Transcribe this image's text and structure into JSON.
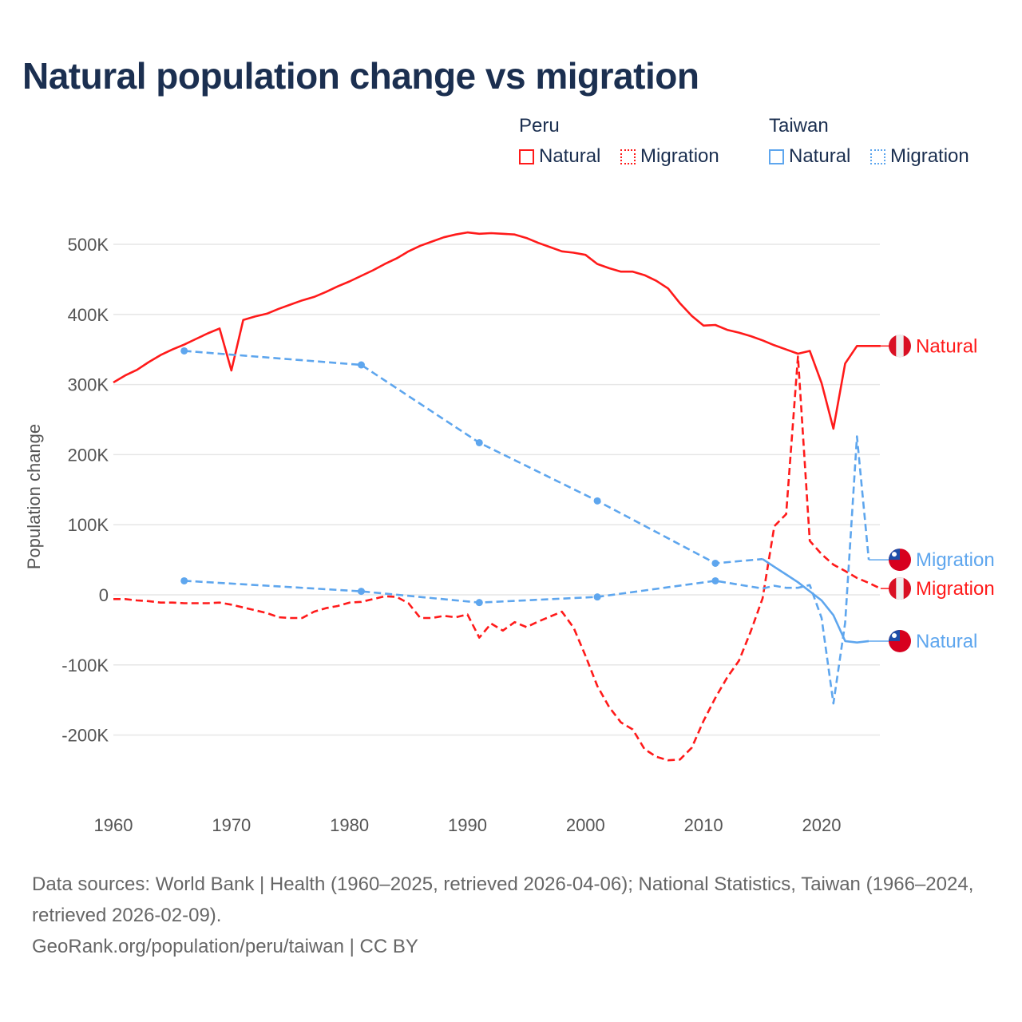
{
  "title": "Natural population change vs migration",
  "legend": {
    "groups": [
      {
        "name": "Peru",
        "items": [
          {
            "label": "Natural",
            "style": "solid",
            "color": "#ff1a1a"
          },
          {
            "label": "Migration",
            "style": "dotted",
            "color": "#ff1a1a"
          }
        ]
      },
      {
        "name": "Taiwan",
        "items": [
          {
            "label": "Natural",
            "style": "solid",
            "color": "#5ea6ee"
          },
          {
            "label": "Migration",
            "style": "dotted",
            "color": "#5ea6ee"
          }
        ]
      }
    ]
  },
  "footer": {
    "sources": "Data sources: World Bank | Health (1960–2025, retrieved 2026-04-06); National Statistics, Taiwan (1966–2024, retrieved 2026-02-09).",
    "credit": "GeoRank.org/population/peru/taiwan | CC BY"
  },
  "chart_data": {
    "type": "line",
    "title": "Natural population change vs migration",
    "xlabel": "",
    "ylabel": "Population change",
    "xlim": [
      1960,
      2025
    ],
    "ylim": [
      -280000,
      540000
    ],
    "x_ticks": [
      1960,
      1970,
      1980,
      1990,
      2000,
      2010,
      2020
    ],
    "x_tick_labels": [
      "1960",
      "1970",
      "1980",
      "1990",
      "2000",
      "2010",
      "2020"
    ],
    "y_ticks": [
      500000,
      400000,
      300000,
      200000,
      100000,
      0,
      -100000,
      -200000
    ],
    "y_tick_labels": [
      "500K",
      "400K",
      "300K",
      "200K",
      "100K",
      "0",
      "-100K",
      "-200K"
    ],
    "grid": true,
    "legend_position": "top-right",
    "series": [
      {
        "name": "Peru Natural",
        "end_label": "Natural",
        "country": "Peru",
        "color": "#ff1a1a",
        "dash": "solid",
        "x": [
          1960,
          1961,
          1962,
          1963,
          1964,
          1965,
          1966,
          1967,
          1968,
          1969,
          1970,
          1971,
          1972,
          1973,
          1974,
          1975,
          1976,
          1977,
          1978,
          1979,
          1980,
          1981,
          1982,
          1983,
          1984,
          1985,
          1986,
          1987,
          1988,
          1989,
          1990,
          1991,
          1992,
          1993,
          1994,
          1995,
          1996,
          1997,
          1998,
          1999,
          2000,
          2001,
          2002,
          2003,
          2004,
          2005,
          2006,
          2007,
          2008,
          2009,
          2010,
          2011,
          2012,
          2013,
          2014,
          2015,
          2016,
          2017,
          2018,
          2019,
          2020,
          2021,
          2022,
          2023,
          2024,
          2025
        ],
        "y": [
          303000,
          313000,
          321000,
          332000,
          342000,
          350000,
          357000,
          365000,
          373000,
          380000,
          320000,
          392000,
          397000,
          401000,
          408000,
          414000,
          420000,
          425000,
          432000,
          440000,
          447000,
          455000,
          463000,
          472000,
          480000,
          490000,
          498000,
          504000,
          510000,
          514000,
          517000,
          515000,
          516000,
          515000,
          514000,
          509000,
          502000,
          496000,
          490000,
          488000,
          485000,
          472000,
          466000,
          461000,
          461000,
          456000,
          448000,
          437000,
          416000,
          398000,
          384000,
          385000,
          378000,
          374000,
          369000,
          363000,
          356000,
          350000,
          344000,
          348000,
          302000,
          237000,
          330000,
          355000,
          355000,
          355000
        ]
      },
      {
        "name": "Peru Migration",
        "end_label": "Migration",
        "country": "Peru",
        "color": "#ff1a1a",
        "dash": "dashed",
        "x": [
          1960,
          1961,
          1962,
          1963,
          1964,
          1965,
          1966,
          1967,
          1968,
          1969,
          1970,
          1971,
          1972,
          1973,
          1974,
          1975,
          1976,
          1977,
          1978,
          1979,
          1980,
          1981,
          1982,
          1983,
          1984,
          1985,
          1986,
          1987,
          1988,
          1989,
          1990,
          1991,
          1992,
          1993,
          1994,
          1995,
          1996,
          1997,
          1998,
          1999,
          2000,
          2001,
          2002,
          2003,
          2004,
          2005,
          2006,
          2007,
          2008,
          2009,
          2010,
          2011,
          2012,
          2013,
          2014,
          2015,
          2016,
          2017,
          2018,
          2019,
          2020,
          2021,
          2022,
          2023,
          2024,
          2025
        ],
        "y": [
          -6000,
          -6000,
          -8000,
          -9000,
          -11000,
          -11000,
          -12000,
          -12000,
          -12000,
          -11000,
          -14000,
          -18000,
          -22000,
          -26000,
          -32000,
          -33000,
          -33000,
          -24000,
          -19000,
          -16000,
          -11000,
          -10000,
          -6000,
          -2000,
          -3000,
          -12000,
          -33000,
          -33000,
          -30000,
          -32000,
          -28000,
          -61000,
          -41000,
          -51000,
          -39000,
          -46000,
          -38000,
          -31000,
          -24000,
          -47000,
          -87000,
          -130000,
          -160000,
          -182000,
          -192000,
          -220000,
          -231000,
          -236000,
          -235000,
          -218000,
          -180000,
          -147000,
          -118000,
          -94000,
          -52000,
          -5000,
          98000,
          115000,
          340000,
          77000,
          58000,
          43000,
          34000,
          24000,
          17000,
          9000
        ]
      },
      {
        "name": "Taiwan Natural",
        "end_label": "Natural",
        "country": "Taiwan",
        "color": "#5ea6ee",
        "dash": "dashed-until-2015",
        "markers": [
          1966,
          1981,
          1991,
          2001,
          2011
        ],
        "x": [
          1966,
          1981,
          1991,
          2001,
          2011,
          2015,
          2016,
          2017,
          2018,
          2019,
          2020,
          2021,
          2022,
          2023,
          2024
        ],
        "y": [
          348000,
          328000,
          217000,
          134000,
          45000,
          51000,
          40000,
          29000,
          18000,
          5000,
          -8000,
          -29000,
          -66000,
          -68000,
          -66000
        ]
      },
      {
        "name": "Taiwan Migration",
        "end_label": "Migration",
        "country": "Taiwan",
        "color": "#5ea6ee",
        "dash": "dashed",
        "markers": [
          1966,
          1981,
          1991,
          2001,
          2011
        ],
        "x": [
          1966,
          1981,
          1991,
          2001,
          2011,
          2015,
          2016,
          2017,
          2018,
          2019,
          2020,
          2021,
          2022,
          2023,
          2024
        ],
        "y": [
          20000,
          5000,
          -11000,
          -3000,
          20000,
          9000,
          13000,
          10000,
          10000,
          14000,
          -33000,
          -155000,
          -40000,
          226000,
          50000
        ]
      }
    ]
  }
}
